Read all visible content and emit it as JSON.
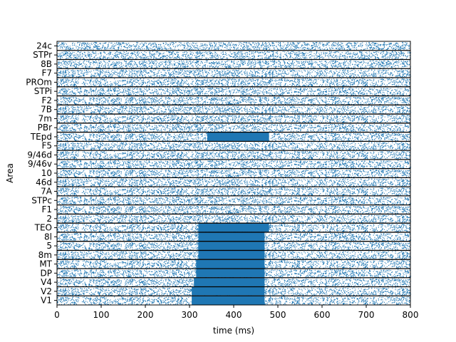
{
  "chart_data": {
    "type": "scatter",
    "subtype": "raster-plot",
    "title": "",
    "xlabel": "time (ms)",
    "ylabel": "Area",
    "xlim": [
      0,
      800
    ],
    "xticks": [
      0,
      100,
      200,
      300,
      400,
      500,
      600,
      700,
      800
    ],
    "areas_top_to_bottom": [
      "24c",
      "STPr",
      "8B",
      "F7",
      "PROm",
      "STPi",
      "F2",
      "7B",
      "7m",
      "PBr",
      "TEpd",
      "F5",
      "9/46d",
      "9/46v",
      "10",
      "46d",
      "7A",
      "STPc",
      "F1",
      "2",
      "TEO",
      "8l",
      "5",
      "8m",
      "MT",
      "DP",
      "V4",
      "V2",
      "V1"
    ],
    "baseline_density": "sparse",
    "evoked_response": [
      {
        "area": "TEpd",
        "start_ms": 340,
        "end_ms": 480
      },
      {
        "area": "TEO",
        "start_ms": 320,
        "end_ms": 480
      },
      {
        "area": "8l",
        "start_ms": 320,
        "end_ms": 470
      },
      {
        "area": "5",
        "start_ms": 320,
        "end_ms": 470
      },
      {
        "area": "8m",
        "start_ms": 320,
        "end_ms": 470
      },
      {
        "area": "MT",
        "start_ms": 315,
        "end_ms": 470
      },
      {
        "area": "DP",
        "start_ms": 315,
        "end_ms": 470
      },
      {
        "area": "V4",
        "start_ms": 310,
        "end_ms": 470
      },
      {
        "area": "V2",
        "start_ms": 305,
        "end_ms": 470
      },
      {
        "area": "V1",
        "start_ms": 305,
        "end_ms": 470
      }
    ],
    "colors": {
      "spikes": "#1f77b4",
      "separators": "#000000",
      "axes": "#000000"
    }
  }
}
